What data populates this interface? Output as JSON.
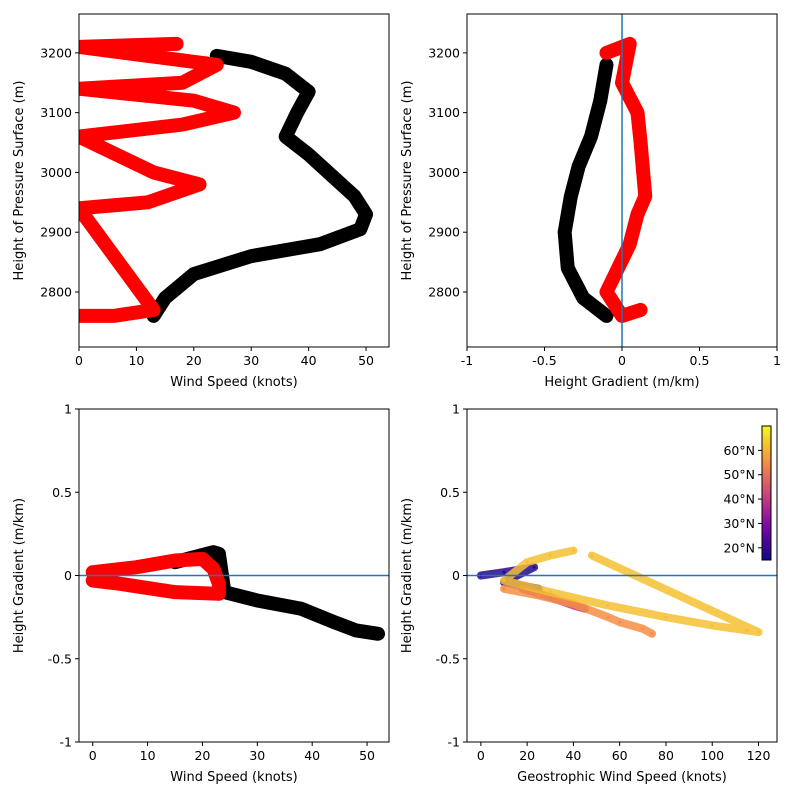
{
  "chart_data": [
    {
      "type": "scatter",
      "panel": "top-left",
      "xlabel": "Wind Speed (knots)",
      "ylabel": "Height of Pressure Surface (m)",
      "xlim": [
        0,
        54
      ],
      "ylim": [
        2708,
        3265
      ],
      "xticks": [
        0,
        10,
        20,
        30,
        40,
        50
      ],
      "xtick_labels": [
        "0",
        "10",
        "20",
        "30",
        "40",
        "50"
      ],
      "yticks": [
        2800,
        2900,
        3000,
        3100,
        3200
      ],
      "ytick_labels": [
        "2800",
        "2900",
        "3000",
        "3100",
        "3200"
      ],
      "series": [
        {
          "color": "#000000",
          "values": [
            [
              13,
              2760
            ],
            [
              15,
              2790
            ],
            [
              20,
              2830
            ],
            [
              30,
              2860
            ],
            [
              42,
              2880
            ],
            [
              49,
              2905
            ],
            [
              50,
              2930
            ],
            [
              48,
              2960
            ],
            [
              44,
              2995
            ],
            [
              40,
              3030
            ],
            [
              36,
              3060
            ],
            [
              38,
              3100
            ],
            [
              40,
              3135
            ],
            [
              36,
              3165
            ],
            [
              30,
              3185
            ],
            [
              24,
              3195
            ]
          ]
        },
        {
          "color": "#ff0000",
          "values": [
            [
              0,
              2760
            ],
            [
              6,
              2760
            ],
            [
              13,
              2770
            ],
            [
              0,
              2940
            ],
            [
              12,
              2950
            ],
            [
              21,
              2980
            ],
            [
              13,
              3000
            ],
            [
              0,
              3060
            ],
            [
              18,
              3080
            ],
            [
              27,
              3100
            ],
            [
              20,
              3120
            ],
            [
              0,
              3140
            ],
            [
              18,
              3150
            ],
            [
              24,
              3180
            ],
            [
              0,
              3210
            ],
            [
              17,
              3215
            ]
          ]
        }
      ]
    },
    {
      "type": "scatter",
      "panel": "top-right",
      "xlabel": "Height Gradient (m/km)",
      "ylabel": "Height of Pressure Surface (m)",
      "xlim": [
        -1,
        1
      ],
      "ylim": [
        2708,
        3265
      ],
      "xticks": [
        -1,
        -0.5,
        0,
        0.5,
        1
      ],
      "xtick_labels": [
        "-1",
        "-0.5",
        "0",
        "0.5",
        "1"
      ],
      "yticks": [
        2800,
        2900,
        3000,
        3100,
        3200
      ],
      "ytick_labels": [
        "2800",
        "2900",
        "3000",
        "3100",
        "3200"
      ],
      "zero_line": {
        "axis": "x",
        "value": 0
      },
      "series": [
        {
          "color": "#000000",
          "values": [
            [
              -0.1,
              2760
            ],
            [
              -0.25,
              2790
            ],
            [
              -0.35,
              2840
            ],
            [
              -0.37,
              2900
            ],
            [
              -0.33,
              2960
            ],
            [
              -0.28,
              3010
            ],
            [
              -0.2,
              3060
            ],
            [
              -0.14,
              3120
            ],
            [
              -0.1,
              3180
            ]
          ]
        },
        {
          "color": "#ff0000",
          "values": [
            [
              -0.1,
              3200
            ],
            [
              0.05,
              3215
            ],
            [
              0.0,
              3150
            ],
            [
              0.1,
              3100
            ],
            [
              0.12,
              3050
            ],
            [
              0.15,
              2960
            ],
            [
              0.1,
              2930
            ],
            [
              0.05,
              2880
            ],
            [
              -0.1,
              2800
            ],
            [
              0.0,
              2760
            ],
            [
              0.12,
              2770
            ]
          ]
        }
      ]
    },
    {
      "type": "scatter",
      "panel": "bottom-left",
      "xlabel": "Wind Speed (knots)",
      "ylabel": "Height Gradient (m/km)",
      "xlim": [
        -2.5,
        54
      ],
      "ylim": [
        -1,
        1
      ],
      "xticks": [
        0,
        10,
        20,
        30,
        40,
        50
      ],
      "xtick_labels": [
        "0",
        "10",
        "20",
        "30",
        "40",
        "50"
      ],
      "yticks": [
        -1,
        -0.5,
        0,
        0.5,
        1
      ],
      "ytick_labels": [
        "-1",
        "-0.5",
        "0",
        "0.5",
        "1"
      ],
      "zero_line": {
        "axis": "y",
        "value": 0
      },
      "series": [
        {
          "color": "#000000",
          "values": [
            [
              15,
              0.08
            ],
            [
              22,
              0.14
            ],
            [
              23,
              0.13
            ],
            [
              24,
              -0.1
            ],
            [
              30,
              -0.15
            ],
            [
              38,
              -0.2
            ],
            [
              44,
              -0.28
            ],
            [
              48,
              -0.33
            ],
            [
              52,
              -0.35
            ]
          ]
        },
        {
          "color": "#ff0000",
          "values": [
            [
              0,
              0.02
            ],
            [
              8,
              0.05
            ],
            [
              15,
              0.09
            ],
            [
              20,
              0.1
            ],
            [
              22,
              0.04
            ],
            [
              23,
              -0.05
            ],
            [
              23,
              -0.11
            ],
            [
              15,
              -0.1
            ],
            [
              5,
              -0.05
            ],
            [
              0,
              -0.03
            ]
          ]
        }
      ]
    },
    {
      "type": "scatter",
      "panel": "bottom-right",
      "xlabel": "Geostrophic Wind Speed (knots)",
      "ylabel": "Height Gradient (m/km)",
      "xlim": [
        -6,
        128
      ],
      "ylim": [
        -1,
        1
      ],
      "xticks": [
        0,
        20,
        40,
        60,
        80,
        100,
        120
      ],
      "xtick_labels": [
        "0",
        "20",
        "40",
        "60",
        "80",
        "100",
        "120"
      ],
      "yticks": [
        -1,
        -0.5,
        0,
        0.5,
        1
      ],
      "ytick_labels": [
        "-1",
        "-0.5",
        "0",
        "0.5",
        "1"
      ],
      "zero_line": {
        "axis": "y",
        "value": 0
      },
      "colorbar": {
        "ticks": [
          20,
          30,
          40,
          50,
          60
        ],
        "tick_labels": [
          "20°N",
          "30°N",
          "40°N",
          "50°N",
          "60°N"
        ],
        "range": [
          15,
          70
        ],
        "colormap": "plasma"
      },
      "series": [
        {
          "color_value": 18,
          "values": [
            [
              0,
              0
            ],
            [
              10,
              0.02
            ],
            [
              23,
              0.05
            ],
            [
              10,
              -0.04
            ],
            [
              25,
              -0.08
            ]
          ]
        },
        {
          "color_value": 40,
          "values": [
            [
              18,
              -0.08
            ],
            [
              30,
              -0.13
            ],
            [
              40,
              -0.18
            ],
            [
              45,
              -0.2
            ]
          ]
        },
        {
          "color_value": 55,
          "values": [
            [
              10,
              -0.08
            ],
            [
              25,
              -0.12
            ],
            [
              40,
              -0.17
            ],
            [
              55,
              -0.25
            ],
            [
              60,
              -0.28
            ],
            [
              70,
              -0.32
            ],
            [
              74,
              -0.35
            ]
          ]
        },
        {
          "color_value": 62,
          "values": [
            [
              40,
              0.15
            ],
            [
              30,
              0.12
            ],
            [
              20,
              0.08
            ],
            [
              10,
              -0.03
            ],
            [
              30,
              -0.1
            ],
            [
              55,
              -0.18
            ],
            [
              80,
              -0.25
            ],
            [
              100,
              -0.3
            ],
            [
              115,
              -0.33
            ],
            [
              120,
              -0.34
            ],
            [
              48,
              0.12
            ]
          ]
        }
      ]
    }
  ]
}
